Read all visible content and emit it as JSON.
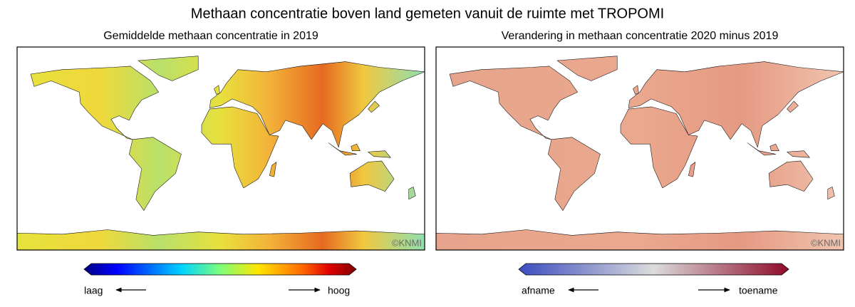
{
  "title": "Methaan concentratie boven land gemeten vanuit de ruimte met TROPOMI",
  "panels": [
    {
      "title": "Gemiddelde methaan concentratie in 2019",
      "credit": "©KNMI",
      "legend": {
        "low": "laag",
        "high": "hoog"
      }
    },
    {
      "title": "Verandering in methaan concentratie 2020 minus 2019",
      "credit": "©KNMI",
      "legend": {
        "low": "afname",
        "high": "toename"
      }
    }
  ]
}
